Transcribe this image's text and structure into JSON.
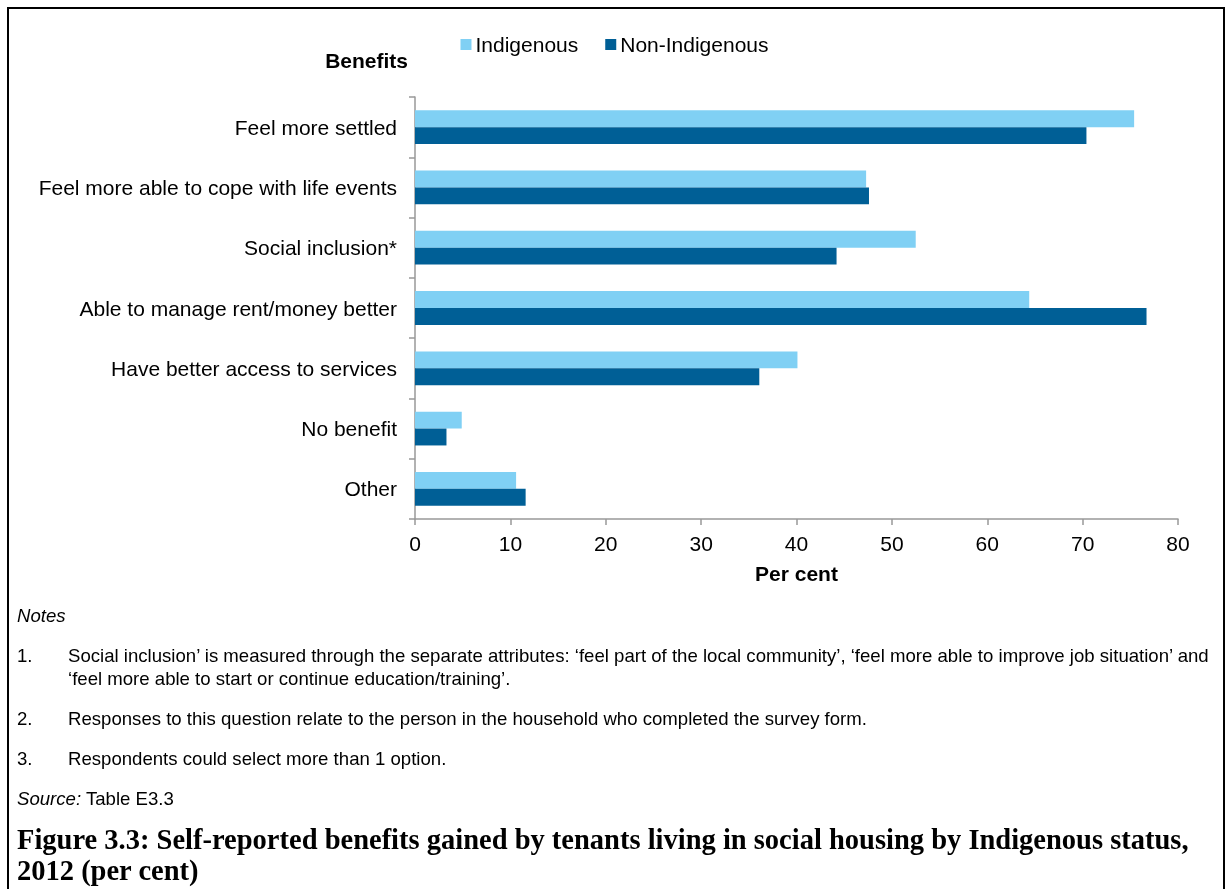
{
  "chart_data": {
    "type": "bar",
    "orientation": "horizontal",
    "title": "Figure 3.3: Self-reported benefits gained by tenants living in social housing by Indigenous status, 2012 (per cent)",
    "xlabel": "Per cent",
    "ylabel": "Benefits",
    "categories": [
      "Feel more settled",
      "Feel more able to cope with life events",
      "Social inclusion*",
      "Able to manage rent/money better",
      "Have better access to services",
      "No benefit",
      "Other"
    ],
    "series": [
      {
        "name": "Indigenous",
        "color": "#80d0f4",
        "values": [
          75.4,
          47.3,
          52.5,
          64.4,
          40.1,
          4.9,
          10.6
        ]
      },
      {
        "name": "Non-Indigenous",
        "color": "#005f96",
        "values": [
          70.4,
          47.6,
          44.2,
          76.7,
          36.1,
          3.3,
          11.6
        ]
      }
    ],
    "xlim": [
      0,
      80
    ],
    "xticks": [
      0,
      10,
      20,
      30,
      40,
      50,
      60,
      70,
      80
    ],
    "legend": "top",
    "annotations": [
      "Notes",
      "1. Social inclusion’ is measured through the separate attributes: ‘feel part of the local community’, ‘feel more able to improve job situation’ and ‘feel more able to start or continue education/training’.",
      "2. Responses to this question relate to the person in the household who completed the survey form.",
      "3. Respondents could select more than 1 option.",
      "Source: Table E3.3"
    ]
  }
}
